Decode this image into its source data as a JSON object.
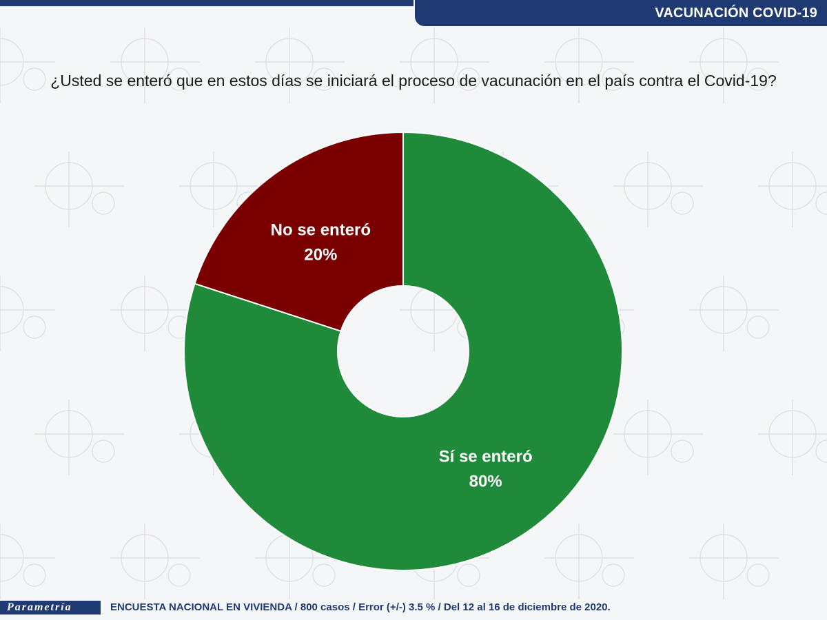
{
  "header": {
    "title": "VACUNACIÓN COVID-19"
  },
  "question": "¿Usted se enteró que en estos días se iniciará el proceso de vacunación en el país contra el Covid-19?",
  "colors": {
    "brand_navy": "#1f3a73",
    "green": "#1e8a3a",
    "red": "#7a0000"
  },
  "chart_data": {
    "type": "pie",
    "style": "donut",
    "slices": [
      {
        "label": "Sí se enteró",
        "value": 80,
        "display": "80%",
        "color": "#1e8a3a"
      },
      {
        "label": "No se enteró",
        "value": 20,
        "display": "20%",
        "color": "#7a0000"
      }
    ]
  },
  "footer": {
    "logo": "Parametría",
    "note": "ENCUESTA NACIONAL EN VIVIENDA / 800 casos / Error (+/-) 3.5 % / Del 12 al 16 de diciembre de 2020."
  }
}
